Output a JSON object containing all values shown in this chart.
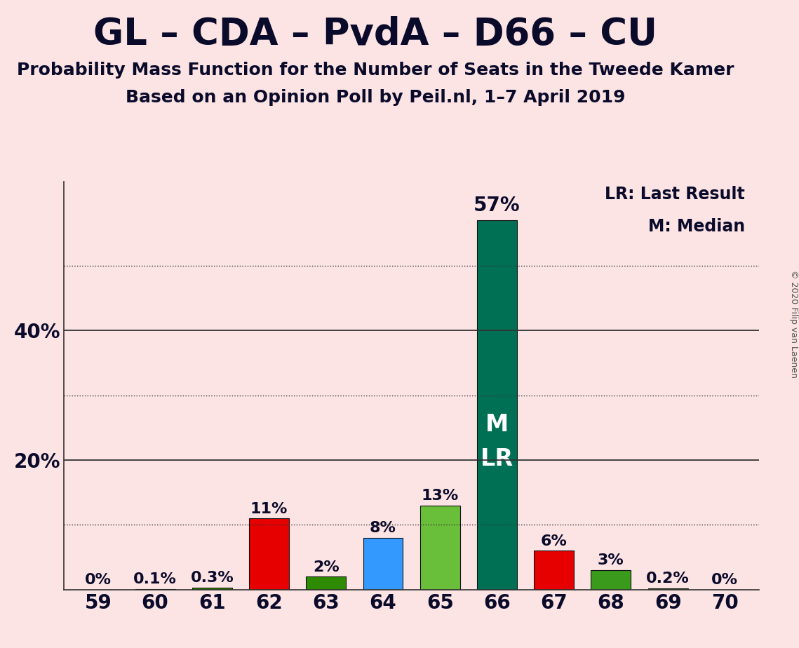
{
  "title": "GL – CDA – PvdA – D66 – CU",
  "subtitle1": "Probability Mass Function for the Number of Seats in the Tweede Kamer",
  "subtitle2": "Based on an Opinion Poll by Peil.nl, 1–7 April 2019",
  "copyright": "© 2020 Filip van Laenen",
  "categories": [
    59,
    60,
    61,
    62,
    63,
    64,
    65,
    66,
    67,
    68,
    69,
    70
  ],
  "values": [
    0.0,
    0.1,
    0.3,
    11.0,
    2.0,
    8.0,
    13.0,
    57.0,
    6.0,
    3.0,
    0.2,
    0.0
  ],
  "bar_colors": [
    "#e60000",
    "#e60000",
    "#2e8b00",
    "#e60000",
    "#2e8b00",
    "#3399ff",
    "#6abf3a",
    "#007055",
    "#e60000",
    "#3a9a1c",
    "#2e8b00",
    "#e60000"
  ],
  "background_color": "#fce4e4",
  "bar_edge_color": "#111111",
  "ylim": [
    0,
    63
  ],
  "solid_lines": [
    20,
    40
  ],
  "dotted_lines": [
    10,
    30,
    50
  ],
  "ytick_labels": {
    "20": "20%",
    "40": "40%"
  },
  "annotation_color": "#0a0a2a",
  "bar_label_fontsize": 16,
  "title_fontsize": 38,
  "subtitle_fontsize": 18,
  "axis_tick_fontsize": 20,
  "legend_text": "LR: Last Result\nM: Median",
  "bar_text_inside": {
    "index": 7,
    "text": "M\nLR",
    "color": "#ffffff",
    "fontsize": 24
  },
  "copyright_fontsize": 9
}
